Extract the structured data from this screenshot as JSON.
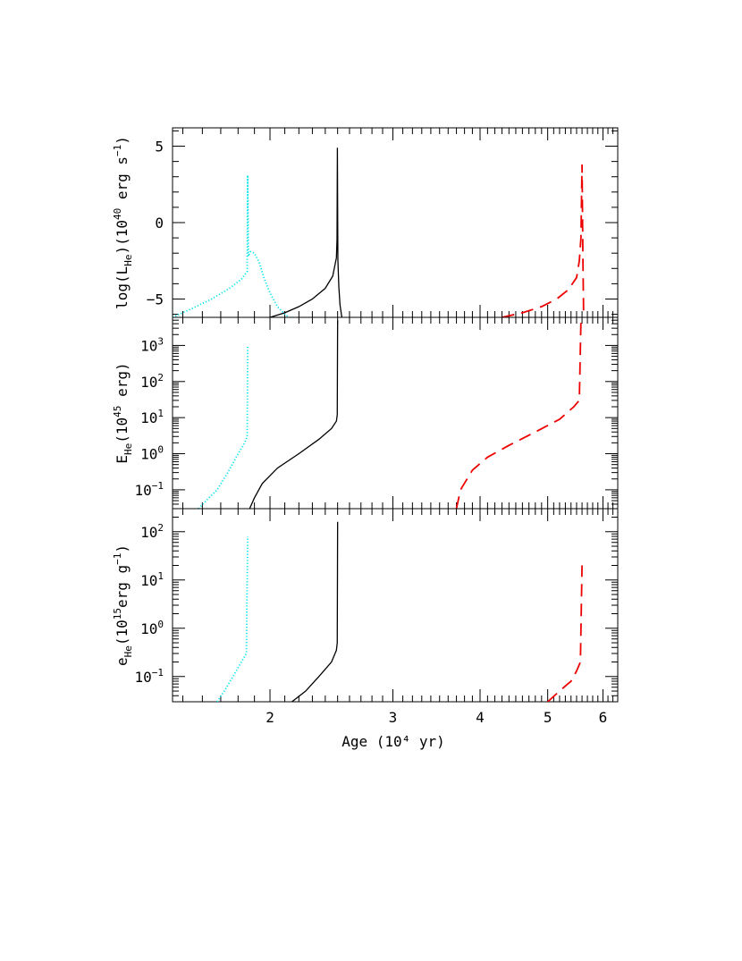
{
  "chart_data": {
    "type": "line",
    "x_label": "Age (10⁴ yr)",
    "x_scale": "log",
    "x_range": [
      1.45,
      6.3
    ],
    "x_ticks": [
      {
        "value": 2,
        "label": "2"
      },
      {
        "value": 3,
        "label": "3"
      },
      {
        "value": 4,
        "label": "4"
      },
      {
        "value": 5,
        "label": "5"
      },
      {
        "value": 6,
        "label": "6"
      }
    ],
    "series_styles": [
      {
        "key": "cyan",
        "color": "#00e5ee",
        "style": "dotted"
      },
      {
        "key": "black",
        "color": "#000000",
        "style": "solid"
      },
      {
        "key": "red",
        "color": "#ee0000",
        "style": "dashed"
      }
    ],
    "panels": [
      {
        "id": "luminosity",
        "ylabel_parts": [
          "log(L",
          "He",
          ")(10",
          "40",
          " erg  s",
          "−1",
          ")"
        ],
        "y_scale": "linear",
        "y_range": [
          -6.2,
          6.2
        ],
        "y_ticks": [
          {
            "value": 5,
            "label": "5"
          },
          {
            "value": 0,
            "label": "0"
          },
          {
            "value": -5,
            "label": "−5"
          }
        ],
        "series": [
          {
            "style_key": "cyan",
            "points": [
              [
                1.45,
                -6.2
              ],
              [
                1.55,
                -5.6
              ],
              [
                1.65,
                -5.0
              ],
              [
                1.75,
                -4.3
              ],
              [
                1.82,
                -3.7
              ],
              [
                1.855,
                -3.2
              ],
              [
                1.858,
                3.1
              ],
              [
                1.862,
                -2.2
              ],
              [
                1.875,
                -1.9
              ],
              [
                1.9,
                -2.0
              ],
              [
                1.93,
                -2.6
              ],
              [
                1.96,
                -3.6
              ],
              [
                2.0,
                -4.6
              ],
              [
                2.05,
                -5.5
              ],
              [
                2.1,
                -6.0
              ],
              [
                2.13,
                -6.2
              ]
            ]
          },
          {
            "style_key": "black",
            "points": [
              [
                2.0,
                -6.2
              ],
              [
                2.1,
                -5.9
              ],
              [
                2.2,
                -5.5
              ],
              [
                2.3,
                -5.0
              ],
              [
                2.4,
                -4.3
              ],
              [
                2.46,
                -3.5
              ],
              [
                2.49,
                -2.3
              ],
              [
                2.495,
                -1.1
              ],
              [
                2.498,
                4.9
              ],
              [
                2.502,
                -2.4
              ],
              [
                2.51,
                -4.2
              ],
              [
                2.52,
                -5.4
              ],
              [
                2.535,
                -6.2
              ]
            ]
          },
          {
            "style_key": "red",
            "points": [
              [
                4.3,
                -6.2
              ],
              [
                4.6,
                -5.9
              ],
              [
                4.9,
                -5.5
              ],
              [
                5.15,
                -5.0
              ],
              [
                5.35,
                -4.4
              ],
              [
                5.5,
                -3.6
              ],
              [
                5.55,
                -2.5
              ],
              [
                5.58,
                -1.0
              ],
              [
                5.6,
                3.8
              ],
              [
                5.615,
                -2.0
              ],
              [
                5.63,
                -6.2
              ]
            ]
          }
        ]
      },
      {
        "id": "energy",
        "ylabel_parts": [
          "E",
          "He",
          "(10",
          "45",
          " erg)"
        ],
        "y_scale": "log",
        "y_range": [
          0.03,
          6000
        ],
        "y_ticks": [
          {
            "value": 0.1,
            "base": "10",
            "exp": "−1"
          },
          {
            "value": 1,
            "base": "10",
            "exp": "0"
          },
          {
            "value": 10,
            "base": "10",
            "exp": "1"
          },
          {
            "value": 100,
            "base": "10",
            "exp": "2"
          },
          {
            "value": 1000,
            "base": "10",
            "exp": "3"
          }
        ],
        "series": [
          {
            "style_key": "cyan",
            "points": [
              [
                1.58,
                0.03
              ],
              [
                1.62,
                0.05
              ],
              [
                1.68,
                0.1
              ],
              [
                1.74,
                0.3
              ],
              [
                1.8,
                1.0
              ],
              [
                1.84,
                2.0
              ],
              [
                1.855,
                3.0
              ],
              [
                1.858,
                1000
              ]
            ]
          },
          {
            "style_key": "black",
            "points": [
              [
                1.87,
                0.03
              ],
              [
                1.9,
                0.06
              ],
              [
                1.95,
                0.15
              ],
              [
                2.05,
                0.4
              ],
              [
                2.2,
                1.0
              ],
              [
                2.35,
                2.5
              ],
              [
                2.45,
                5.0
              ],
              [
                2.49,
                8.0
              ],
              [
                2.497,
                12
              ],
              [
                2.5,
                5000
              ]
            ]
          },
          {
            "style_key": "red",
            "points": [
              [
                3.7,
                0.03
              ],
              [
                3.75,
                0.1
              ],
              [
                3.9,
                0.35
              ],
              [
                4.1,
                0.8
              ],
              [
                4.4,
                1.7
              ],
              [
                4.8,
                4.0
              ],
              [
                5.2,
                9.0
              ],
              [
                5.45,
                20
              ],
              [
                5.55,
                30
              ],
              [
                5.58,
                5000
              ]
            ]
          }
        ]
      },
      {
        "id": "specific-energy",
        "ylabel_parts": [
          "e",
          "He",
          "(10",
          "15",
          "erg  g",
          "−1",
          ")"
        ],
        "y_scale": "log",
        "y_range": [
          0.03,
          300
        ],
        "y_ticks": [
          {
            "value": 0.1,
            "base": "10",
            "exp": "−1"
          },
          {
            "value": 1,
            "base": "10",
            "exp": "0"
          },
          {
            "value": 10,
            "base": "10",
            "exp": "1"
          },
          {
            "value": 100,
            "base": "10",
            "exp": "2"
          }
        ],
        "series": [
          {
            "style_key": "cyan",
            "points": [
              [
                1.68,
                0.03
              ],
              [
                1.72,
                0.05
              ],
              [
                1.77,
                0.1
              ],
              [
                1.82,
                0.2
              ],
              [
                1.85,
                0.3
              ],
              [
                1.858,
                80
              ]
            ]
          },
          {
            "style_key": "black",
            "points": [
              [
                2.15,
                0.03
              ],
              [
                2.25,
                0.05
              ],
              [
                2.35,
                0.1
              ],
              [
                2.45,
                0.2
              ],
              [
                2.49,
                0.35
              ],
              [
                2.497,
                0.5
              ],
              [
                2.5,
                160
              ]
            ]
          },
          {
            "style_key": "red",
            "points": [
              [
                5.0,
                0.03
              ],
              [
                5.2,
                0.05
              ],
              [
                5.4,
                0.08
              ],
              [
                5.5,
                0.13
              ],
              [
                5.57,
                0.2
              ],
              [
                5.6,
                20
              ]
            ]
          }
        ]
      }
    ]
  }
}
